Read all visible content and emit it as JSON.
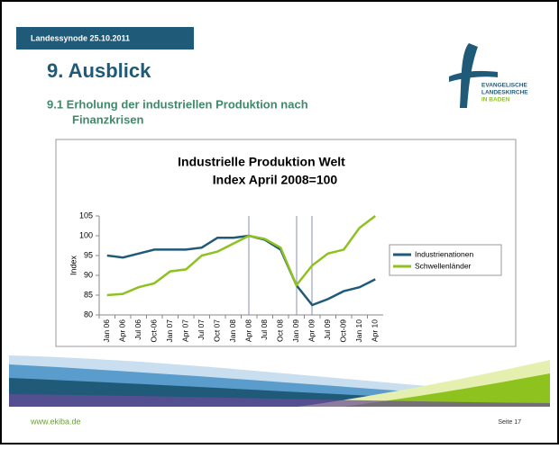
{
  "slide": {
    "header": "Landessynode 25.10.2011",
    "title": "9. Ausblick",
    "subtitle": [
      "9.1 Erholung der industriellen Produktion nach",
      "Finanzkrisen"
    ],
    "logo": [
      "EVANGELISCHE",
      "LANDESKIRCHE",
      "IN BADEN"
    ],
    "footer_url": "www.ekiba.de",
    "page": "Seite 17"
  },
  "chart_data": {
    "type": "line",
    "title": "Industrielle Produktion Welt",
    "subtitle": "Index April 2008=100",
    "y_label": "Index",
    "categories": [
      "Jan 06",
      "Apr 06",
      "Jul 06",
      "Oct-06",
      "Jan 07",
      "Apr 07",
      "Jul 07",
      "Oct 07",
      "Jan 08",
      "Apr 08",
      "Jul 08",
      "Oct 08",
      "Jan 09",
      "Apr 09",
      "Jul 09",
      "Oct-09",
      "Jan 10",
      "Apr 10"
    ],
    "series": [
      {
        "name": "Industrienationen",
        "color": "#1f5a78",
        "values": [
          95,
          94.5,
          95.5,
          96.5,
          96.5,
          96.5,
          97,
          99.5,
          99.5,
          100,
          99,
          96.5,
          87.5,
          82.5,
          84,
          86,
          87,
          89
        ]
      },
      {
        "name": "Schwellenländer",
        "color": "#8dc21f",
        "values": [
          85,
          85.3,
          87,
          88,
          91,
          91.5,
          95,
          96,
          98,
          100,
          99.2,
          97,
          87.5,
          92.5,
          95.5,
          96.5,
          102,
          105
        ]
      }
    ],
    "ylim": [
      80,
      105
    ],
    "yticks": [
      80,
      85,
      90,
      95,
      100,
      105
    ],
    "legend": "right"
  }
}
